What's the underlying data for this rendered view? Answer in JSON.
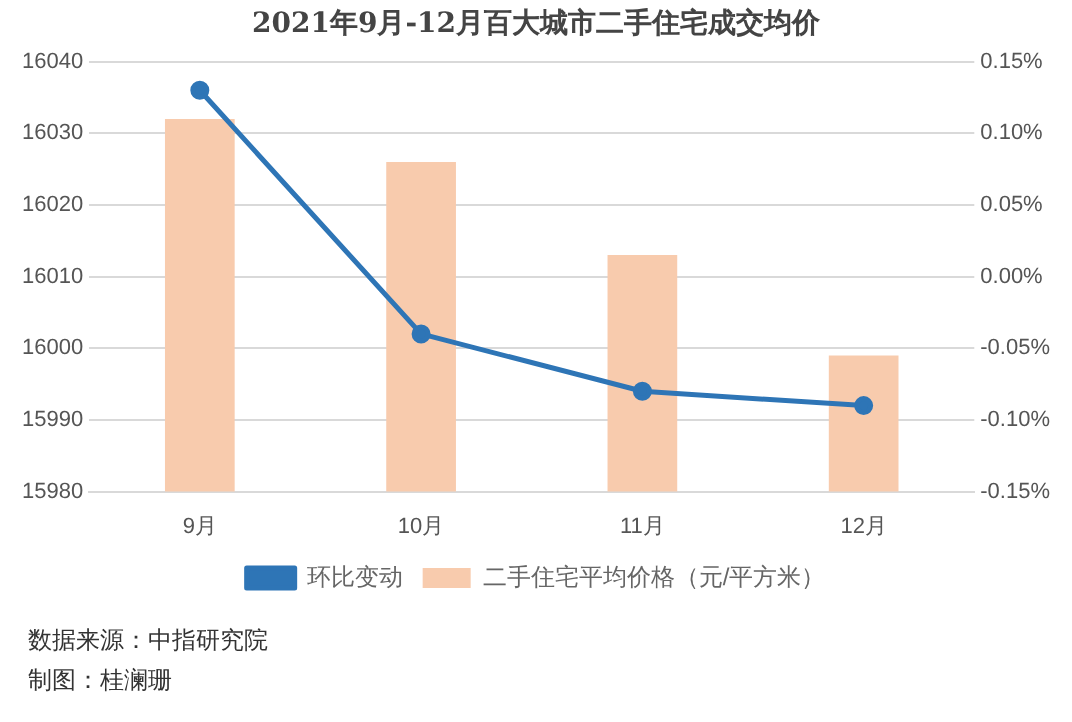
{
  "chart_data": {
    "type": "bar",
    "title": "2021年9月-12月百大城市二手住宅成交均价",
    "categories": [
      "9月",
      "10月",
      "11月",
      "12月"
    ],
    "series": [
      {
        "name": "二手住宅平均价格（元/平方米）",
        "color": "#f8cbad",
        "values": [
          16032,
          16026,
          16013,
          15999
        ]
      },
      {
        "name": "环比变动",
        "type": "line",
        "axis": "y2",
        "color": "#2e75b6",
        "values": [
          0.13,
          -0.04,
          -0.08,
          -0.09
        ]
      }
    ],
    "ylim": [
      15980,
      16040
    ],
    "yticks": [
      15980,
      15990,
      16000,
      16010,
      16020,
      16030,
      16040
    ],
    "y2lim": [
      -0.15,
      0.15
    ],
    "y2ticks": [
      {
        "value": -0.15,
        "label": "-0.15%"
      },
      {
        "value": -0.1,
        "label": "-0.10%"
      },
      {
        "value": -0.05,
        "label": "-0.05%"
      },
      {
        "value": 0,
        "label": "0.00%"
      },
      {
        "value": 0.05,
        "label": "0.05%"
      },
      {
        "value": 0.1,
        "label": "0.10%"
      },
      {
        "value": 0.15,
        "label": "0.15%"
      }
    ],
    "grid": "y",
    "legend": "bottom",
    "marker": "circle",
    "annotations": [
      "数据来源：中指研究院",
      "制图：桂澜珊"
    ]
  }
}
